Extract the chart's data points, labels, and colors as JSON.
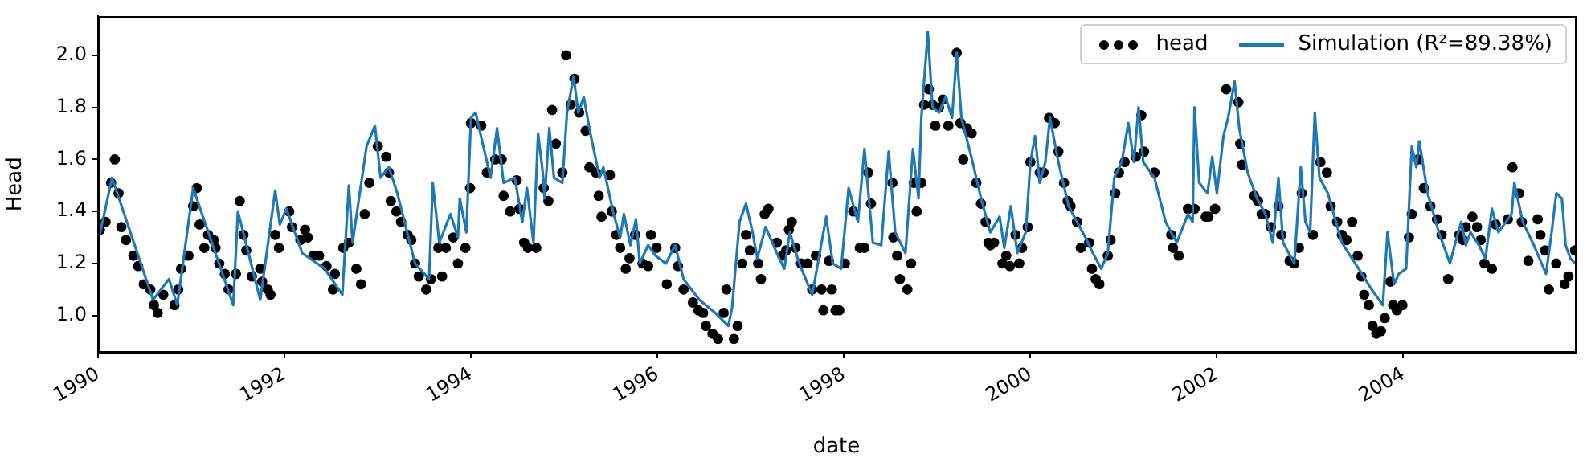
{
  "chart_data": {
    "type": "line",
    "xlabel": "date",
    "ylabel": "Head",
    "xlim": [
      1990,
      2005.84
    ],
    "xticks": [
      1990,
      1992,
      1994,
      1996,
      1998,
      2000,
      2002,
      2004
    ],
    "ylim": [
      0.86,
      2.15
    ],
    "yticks": [
      {
        "value": 1.0,
        "label": "1.0"
      },
      {
        "value": 1.2,
        "label": "1.2"
      },
      {
        "value": 1.4,
        "label": "1.4"
      },
      {
        "value": 1.6,
        "label": "1.6"
      },
      {
        "value": 1.8,
        "label": "1.8"
      },
      {
        "value": 2.0,
        "label": "2.0"
      }
    ],
    "legend": "top right",
    "series": [
      {
        "name": "head",
        "type": "scatter",
        "color": "#000000",
        "marker": "circle",
        "x": [
          1990.02,
          1990.08,
          1990.14,
          1990.18,
          1990.22,
          1990.25,
          1990.3,
          1990.38,
          1990.43,
          1990.49,
          1990.56,
          1990.6,
          1990.64,
          1990.7,
          1990.82,
          1990.86,
          1990.89,
          1990.97,
          1991.02,
          1991.06,
          1991.09,
          1991.14,
          1991.18,
          1991.24,
          1991.26,
          1991.3,
          1991.36,
          1991.4,
          1991.48,
          1991.52,
          1991.56,
          1991.59,
          1991.65,
          1991.74,
          1991.76,
          1991.82,
          1991.85,
          1991.9,
          1991.94,
          1992.05,
          1992.08,
          1992.17,
          1992.22,
          1992.25,
          1992.31,
          1992.37,
          1992.45,
          1992.52,
          1992.54,
          1992.63,
          1992.69,
          1992.77,
          1992.82,
          1992.86,
          1992.91,
          1993.0,
          1993.09,
          1993.14,
          1993.12,
          1993.2,
          1993.25,
          1993.32,
          1993.36,
          1993.4,
          1993.44,
          1993.52,
          1993.57,
          1993.65,
          1993.69,
          1993.73,
          1993.81,
          1993.86,
          1993.94,
          1993.99,
          1994.0,
          1994.11,
          1994.17,
          1994.26,
          1994.33,
          1994.35,
          1994.42,
          1994.49,
          1994.52,
          1994.57,
          1994.61,
          1994.7,
          1994.78,
          1994.83,
          1994.87,
          1994.91,
          1994.98,
          1995.02,
          1995.07,
          1995.11,
          1995.16,
          1995.23,
          1995.27,
          1995.34,
          1995.37,
          1995.4,
          1995.49,
          1995.51,
          1995.56,
          1995.6,
          1995.66,
          1995.7,
          1995.76,
          1995.84,
          1995.9,
          1995.93,
          1995.99,
          1996.1,
          1996.19,
          1996.22,
          1996.28,
          1996.38,
          1996.44,
          1996.49,
          1996.52,
          1996.59,
          1996.65,
          1996.71,
          1996.74,
          1996.82,
          1996.86,
          1996.91,
          1996.95,
          1996.99,
          1997.08,
          1997.11,
          1997.15,
          1997.19,
          1997.28,
          1997.34,
          1997.38,
          1997.41,
          1997.44,
          1997.48,
          1997.54,
          1997.61,
          1997.66,
          1997.7,
          1997.76,
          1997.78,
          1997.84,
          1997.87,
          1997.91,
          1997.95,
          1998.01,
          1998.1,
          1998.17,
          1998.22,
          1998.26,
          1998.29,
          1998.52,
          1998.53,
          1998.57,
          1998.6,
          1998.68,
          1998.72,
          1998.75,
          1998.78,
          1998.83,
          1998.86,
          1998.91,
          1998.95,
          1998.98,
          1999.02,
          1999.06,
          1999.12,
          1999.21,
          1999.25,
          1999.28,
          1999.32,
          1999.37,
          1999.42,
          1999.47,
          1999.52,
          1999.55,
          1999.57,
          1999.61,
          1999.7,
          1999.74,
          1999.78,
          1999.84,
          1999.88,
          1999.91,
          1999.97,
          2000.0,
          2000.1,
          2000.14,
          2000.2,
          2000.26,
          2000.3,
          2000.36,
          2000.4,
          2000.43,
          2000.5,
          2000.54,
          2000.63,
          2000.66,
          2000.7,
          2000.74,
          2000.83,
          2000.86,
          2000.91,
          2000.95,
          2001.01,
          2001.13,
          2001.19,
          2001.22,
          2001.33,
          2001.51,
          2001.53,
          2001.59,
          2001.69,
          2001.76,
          2001.88,
          2001.91,
          2001.98,
          2002.1,
          2002.23,
          2002.25,
          2002.27,
          2002.4,
          2002.44,
          2002.48,
          2002.52,
          2002.58,
          2002.66,
          2002.69,
          2002.78,
          2002.83,
          2002.88,
          2002.91,
          2003.03,
          2003.11,
          2003.18,
          2003.22,
          2003.29,
          2003.34,
          2003.39,
          2003.45,
          2003.51,
          2003.55,
          2003.58,
          2003.63,
          2003.67,
          2003.71,
          2003.76,
          2003.8,
          2003.86,
          2003.89,
          2003.93,
          2003.99,
          2004.06,
          2004.09,
          2004.16,
          2004.22,
          2004.29,
          2004.36,
          2004.41,
          2004.48,
          2004.6,
          2004.64,
          2004.67,
          2004.74,
          2004.79,
          2004.83,
          2004.87,
          2004.95,
          2004.99,
          2005.12,
          2005.17,
          2005.24,
          2005.27,
          2005.34,
          2005.44,
          2005.47,
          2005.52,
          2005.56,
          2005.64,
          2005.73,
          2005.77,
          2005.84
        ],
        "values": [
          1.33,
          1.36,
          1.51,
          1.6,
          1.47,
          1.34,
          1.29,
          1.23,
          1.19,
          1.12,
          1.1,
          1.04,
          1.01,
          1.08,
          1.04,
          1.1,
          1.18,
          1.23,
          1.42,
          1.49,
          1.35,
          1.26,
          1.31,
          1.29,
          1.26,
          1.2,
          1.16,
          1.1,
          1.16,
          1.44,
          1.31,
          1.25,
          1.15,
          1.18,
          1.13,
          1.1,
          1.08,
          1.31,
          1.26,
          1.4,
          1.34,
          1.29,
          1.33,
          1.3,
          1.23,
          1.23,
          1.19,
          1.1,
          1.16,
          1.26,
          1.28,
          1.18,
          1.12,
          1.39,
          1.51,
          1.65,
          1.61,
          1.44,
          1.55,
          1.4,
          1.36,
          1.31,
          1.29,
          1.2,
          1.15,
          1.1,
          1.14,
          1.26,
          1.15,
          1.26,
          1.3,
          1.2,
          1.26,
          1.49,
          1.74,
          1.73,
          1.55,
          1.6,
          1.6,
          1.46,
          1.4,
          1.52,
          1.41,
          1.28,
          1.26,
          1.26,
          1.49,
          1.44,
          1.79,
          1.66,
          1.55,
          2.0,
          1.81,
          1.91,
          1.78,
          1.71,
          1.57,
          1.55,
          1.46,
          1.38,
          1.54,
          1.4,
          1.31,
          1.26,
          1.18,
          1.22,
          1.31,
          1.2,
          1.19,
          1.31,
          1.26,
          1.12,
          1.26,
          1.19,
          1.1,
          1.05,
          1.02,
          1.01,
          0.96,
          0.93,
          0.91,
          1.01,
          1.1,
          0.91,
          0.96,
          1.2,
          1.31,
          1.25,
          1.2,
          1.14,
          1.39,
          1.41,
          1.28,
          1.23,
          1.25,
          1.33,
          1.36,
          1.26,
          1.2,
          1.2,
          1.1,
          1.23,
          1.1,
          1.02,
          1.21,
          1.1,
          1.02,
          1.02,
          1.2,
          1.4,
          1.26,
          1.26,
          1.55,
          1.43,
          1.51,
          1.3,
          1.23,
          1.14,
          1.1,
          1.2,
          1.51,
          1.4,
          1.51,
          1.81,
          1.87,
          1.81,
          1.73,
          1.8,
          1.83,
          1.73,
          2.01,
          1.74,
          1.6,
          1.72,
          1.7,
          1.51,
          1.43,
          1.36,
          1.28,
          1.27,
          1.28,
          1.2,
          1.23,
          1.19,
          1.31,
          1.2,
          1.26,
          1.34,
          1.59,
          1.55,
          1.55,
          1.76,
          1.74,
          1.63,
          1.51,
          1.44,
          1.42,
          1.36,
          1.26,
          1.28,
          1.18,
          1.14,
          1.12,
          1.23,
          1.29,
          1.47,
          1.55,
          1.59,
          1.61,
          1.77,
          1.63,
          1.55,
          1.31,
          1.26,
          1.23,
          1.41,
          1.41,
          1.38,
          1.38,
          1.41,
          1.87,
          1.82,
          1.66,
          1.58,
          1.46,
          1.44,
          1.39,
          1.39,
          1.34,
          1.42,
          1.31,
          1.21,
          1.2,
          1.26,
          1.47,
          1.31,
          1.59,
          1.55,
          1.42,
          1.36,
          1.31,
          1.29,
          1.36,
          1.23,
          1.15,
          1.08,
          1.04,
          0.96,
          0.93,
          0.94,
          0.99,
          1.13,
          1.04,
          1.02,
          1.04,
          1.3,
          1.39,
          1.6,
          1.49,
          1.42,
          1.37,
          1.31,
          1.14,
          1.31,
          1.29,
          1.34,
          1.38,
          1.34,
          1.29,
          1.2,
          1.18,
          1.35,
          1.37,
          1.57,
          1.47,
          1.36,
          1.21,
          1.37,
          1.31,
          1.25,
          1.1,
          1.2,
          1.12,
          1.15,
          1.25
        ]
      },
      {
        "name": "Simulation (R²=89.38%)",
        "type": "line",
        "color": "#1f77b4",
        "x": [
          1990.0,
          1990.15,
          1990.59,
          1990.76,
          1990.85,
          1991.02,
          1991.45,
          1991.5,
          1991.74,
          1991.9,
          1991.95,
          1992.02,
          1992.19,
          1992.43,
          1992.62,
          1992.69,
          1992.73,
          1992.88,
          1992.97,
          1993.03,
          1993.12,
          1993.21,
          1993.4,
          1993.55,
          1993.59,
          1993.66,
          1993.78,
          1993.86,
          1993.88,
          1993.95,
          1994.0,
          1994.05,
          1994.12,
          1994.21,
          1994.28,
          1994.35,
          1994.47,
          1994.55,
          1994.6,
          1994.67,
          1994.72,
          1994.77,
          1994.79,
          1994.84,
          1994.89,
          1994.98,
          1995.03,
          1995.1,
          1995.15,
          1995.21,
          1995.28,
          1995.38,
          1995.42,
          1995.53,
          1995.6,
          1995.64,
          1995.71,
          1995.77,
          1995.81,
          1995.9,
          1995.98,
          1996.09,
          1996.19,
          1996.28,
          1996.45,
          1996.62,
          1996.76,
          1996.8,
          1996.88,
          1996.95,
          1997.02,
          1997.07,
          1997.16,
          1997.28,
          1997.36,
          1997.42,
          1997.52,
          1997.66,
          1997.81,
          1997.88,
          1997.97,
          1998.05,
          1998.15,
          1998.22,
          1998.31,
          1998.4,
          1998.48,
          1998.55,
          1998.66,
          1998.74,
          1998.8,
          1998.83,
          1998.9,
          1998.95,
          1999.02,
          1999.09,
          1999.16,
          1999.21,
          1999.26,
          1999.38,
          1999.47,
          1999.57,
          1999.67,
          1999.72,
          1999.79,
          1999.86,
          1999.95,
          2000.0,
          2000.05,
          2000.1,
          2000.16,
          2000.21,
          2000.3,
          2000.41,
          2000.5,
          2000.59,
          2000.67,
          2000.76,
          2000.83,
          2000.9,
          2000.98,
          2001.05,
          2001.11,
          2001.16,
          2001.21,
          2001.33,
          2001.45,
          2001.57,
          2001.69,
          2001.74,
          2001.76,
          2001.81,
          2001.9,
          2001.95,
          2002.0,
          2002.07,
          2002.12,
          2002.19,
          2002.24,
          2002.33,
          2002.43,
          2002.52,
          2002.6,
          2002.66,
          2002.71,
          2002.83,
          2002.9,
          2002.95,
          2003.0,
          2003.05,
          2003.1,
          2003.19,
          2003.34,
          2003.52,
          2003.66,
          2003.78,
          2003.83,
          2003.9,
          2003.95,
          2004.03,
          2004.09,
          2004.14,
          2004.17,
          2004.26,
          2004.38,
          2004.5,
          2004.55,
          2004.62,
          2004.67,
          2004.72,
          2004.81,
          2004.88,
          2004.95,
          2005.02,
          2005.1,
          2005.16,
          2005.19,
          2005.28,
          2005.4,
          2005.53,
          2005.59,
          2005.64,
          2005.7,
          2005.74,
          2005.79,
          2005.84
        ],
        "values": [
          1.28,
          1.53,
          1.06,
          1.14,
          1.04,
          1.49,
          1.04,
          1.4,
          1.06,
          1.48,
          1.35,
          1.41,
          1.24,
          1.18,
          1.08,
          1.5,
          1.28,
          1.65,
          1.73,
          1.53,
          1.57,
          1.47,
          1.2,
          1.14,
          1.51,
          1.28,
          1.39,
          1.3,
          1.45,
          1.32,
          1.76,
          1.78,
          1.67,
          1.53,
          1.72,
          1.51,
          1.53,
          1.36,
          1.49,
          1.28,
          1.7,
          1.55,
          1.45,
          1.72,
          1.53,
          1.51,
          1.78,
          1.92,
          1.78,
          1.84,
          1.7,
          1.53,
          1.57,
          1.39,
          1.3,
          1.39,
          1.27,
          1.37,
          1.2,
          1.27,
          1.23,
          1.2,
          1.27,
          1.14,
          1.06,
          1.01,
          0.96,
          1.03,
          1.36,
          1.43,
          1.32,
          1.22,
          1.34,
          1.24,
          1.18,
          1.32,
          1.2,
          1.08,
          1.38,
          1.2,
          1.18,
          1.49,
          1.36,
          1.64,
          1.28,
          1.27,
          1.63,
          1.32,
          1.24,
          1.64,
          1.45,
          1.76,
          2.09,
          1.8,
          1.78,
          1.84,
          1.76,
          2.01,
          1.76,
          1.59,
          1.45,
          1.32,
          1.38,
          1.26,
          1.42,
          1.24,
          1.32,
          1.59,
          1.69,
          1.51,
          1.59,
          1.76,
          1.59,
          1.42,
          1.36,
          1.3,
          1.24,
          1.18,
          1.24,
          1.53,
          1.59,
          1.74,
          1.59,
          1.8,
          1.59,
          1.53,
          1.36,
          1.28,
          1.39,
          1.36,
          1.8,
          1.51,
          1.47,
          1.61,
          1.47,
          1.69,
          1.76,
          1.9,
          1.72,
          1.55,
          1.45,
          1.39,
          1.28,
          1.53,
          1.28,
          1.2,
          1.57,
          1.36,
          1.32,
          1.78,
          1.53,
          1.47,
          1.28,
          1.18,
          1.1,
          1.04,
          1.32,
          1.12,
          1.16,
          1.18,
          1.65,
          1.57,
          1.67,
          1.47,
          1.32,
          1.2,
          1.27,
          1.36,
          1.27,
          1.32,
          1.27,
          1.22,
          1.41,
          1.32,
          1.36,
          1.39,
          1.51,
          1.36,
          1.27,
          1.16,
          1.32,
          1.47,
          1.45,
          1.27,
          1.22,
          1.2
        ]
      }
    ]
  }
}
